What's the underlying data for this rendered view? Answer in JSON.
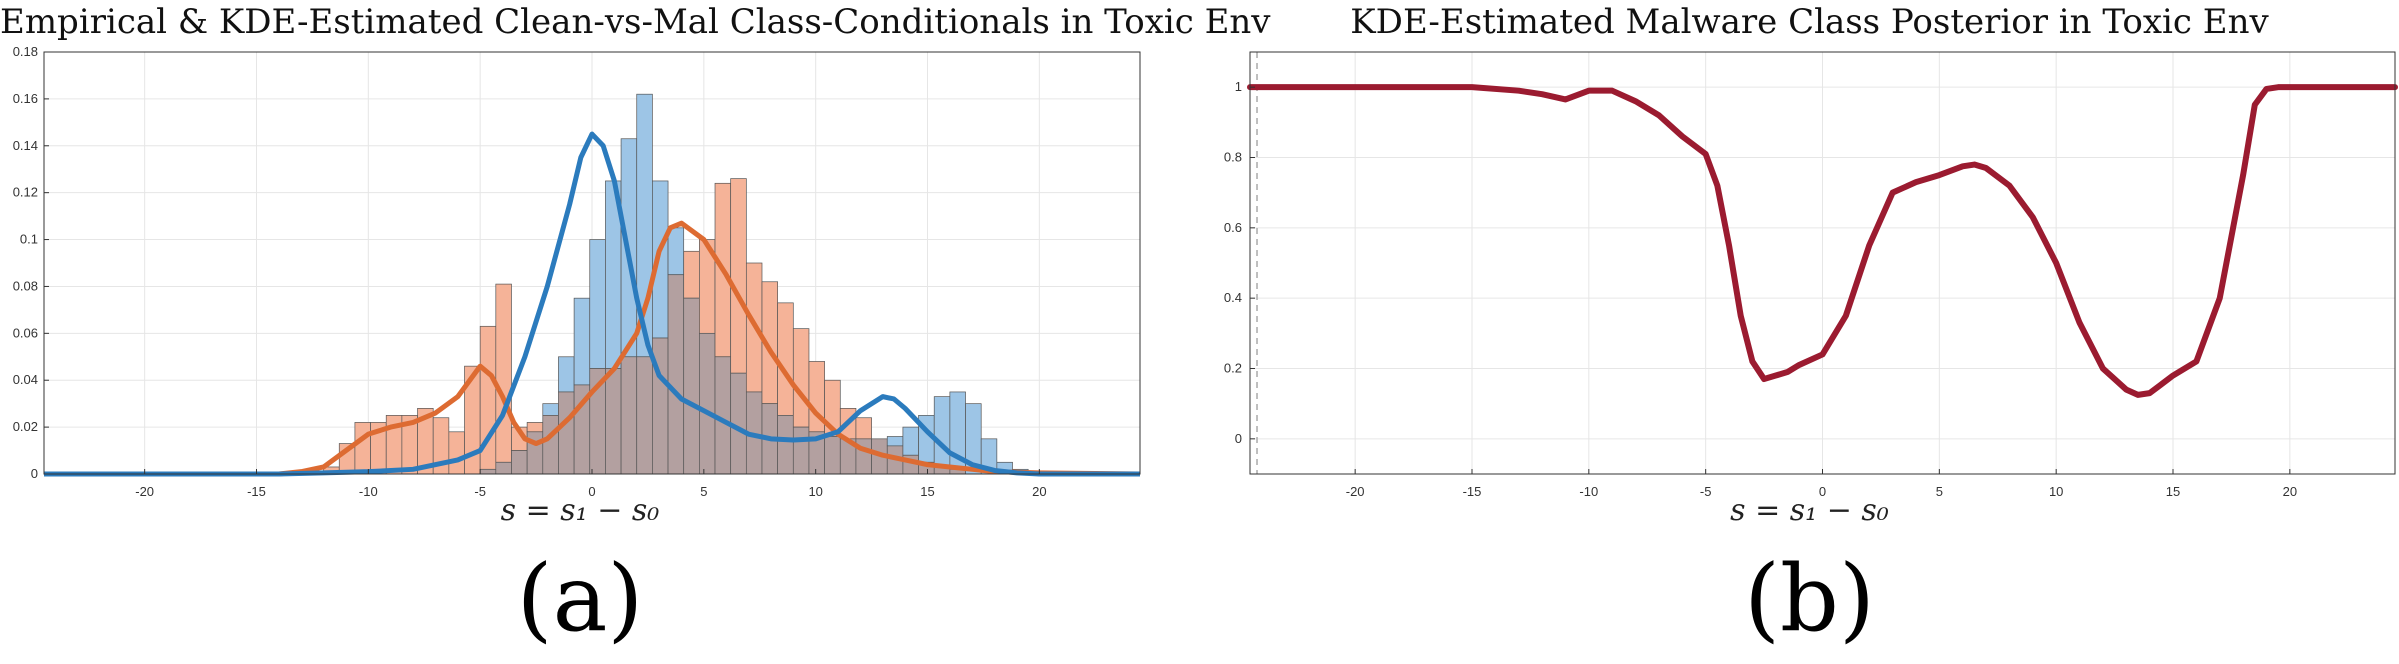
{
  "panels": [
    {
      "caption": "(a)",
      "chart_data": {
        "type": "histogram_with_kde",
        "title": "Empirical & KDE-Estimated Clean-vs-Mal Class-Conditionals in Toxic Env",
        "xlabel": "s = s_1 - s_0",
        "xlabel_display": "s = s₁ − s₀",
        "ylabel": "",
        "xlim": [
          -24.5,
          24.5
        ],
        "ylim": [
          0,
          0.18
        ],
        "xticks": [
          -20,
          -15,
          -10,
          -5,
          0,
          5,
          10,
          15,
          20
        ],
        "yticks": [
          0,
          0.02,
          0.04,
          0.06,
          0.08,
          0.1,
          0.12,
          0.14,
          0.16,
          0.18
        ],
        "ytick_labels": [
          "0",
          "0.02",
          "0.04",
          "0.06",
          "0.08",
          "0.1",
          "0.12",
          "0.14",
          "0.16",
          "0.18"
        ],
        "grid": true,
        "legend": "none",
        "colors": {
          "clean": "#2b7bbd",
          "clean_fill": "#9dc5e6",
          "mal": "#dd6b32",
          "mal_fill": "#f5b398",
          "overlap": "#b3a0a0"
        },
        "bin_start": -12,
        "bin_width": 0.7,
        "clean_hist": [
          0,
          0,
          0,
          0,
          0,
          0,
          0,
          0,
          0,
          0,
          0.002,
          0.005,
          0.01,
          0.018,
          0.03,
          0.05,
          0.075,
          0.1,
          0.125,
          0.143,
          0.162,
          0.125,
          0.105,
          0.075,
          0.06,
          0.05,
          0.043,
          0.035,
          0.03,
          0.025,
          0.02,
          0.018,
          0.016,
          0.015,
          0.015,
          0.015,
          0.016,
          0.02,
          0.025,
          0.033,
          0.035,
          0.03,
          0.015,
          0.005,
          0.002,
          0
        ],
        "mal_hist": [
          0.003,
          0.013,
          0.022,
          0.022,
          0.025,
          0.025,
          0.028,
          0.024,
          0.018,
          0.046,
          0.063,
          0.081,
          0.02,
          0.022,
          0.025,
          0.035,
          0.038,
          0.045,
          0.045,
          0.05,
          0.05,
          0.058,
          0.085,
          0.095,
          0.1,
          0.124,
          0.126,
          0.09,
          0.082,
          0.073,
          0.062,
          0.048,
          0.04,
          0.028,
          0.024,
          0.015,
          0.012,
          0.008,
          0.005,
          0.003,
          0.002,
          0,
          0,
          0,
          0,
          0
        ],
        "kde_clean": [
          [
            -24.5,
            0
          ],
          [
            -14,
            0
          ],
          [
            -12,
            0.0005
          ],
          [
            -10,
            0.001
          ],
          [
            -8,
            0.002
          ],
          [
            -6,
            0.006
          ],
          [
            -5,
            0.01
          ],
          [
            -4,
            0.025
          ],
          [
            -3,
            0.05
          ],
          [
            -2,
            0.08
          ],
          [
            -1,
            0.115
          ],
          [
            -0.5,
            0.135
          ],
          [
            0,
            0.145
          ],
          [
            0.5,
            0.14
          ],
          [
            1,
            0.125
          ],
          [
            1.5,
            0.1
          ],
          [
            2,
            0.075
          ],
          [
            2.5,
            0.055
          ],
          [
            3,
            0.042
          ],
          [
            4,
            0.032
          ],
          [
            5,
            0.027
          ],
          [
            6,
            0.022
          ],
          [
            7,
            0.017
          ],
          [
            8,
            0.015
          ],
          [
            9,
            0.0145
          ],
          [
            10,
            0.015
          ],
          [
            11,
            0.018
          ],
          [
            12,
            0.027
          ],
          [
            13,
            0.033
          ],
          [
            13.5,
            0.032
          ],
          [
            14,
            0.028
          ],
          [
            15,
            0.018
          ],
          [
            16,
            0.009
          ],
          [
            17,
            0.004
          ],
          [
            18,
            0.0015
          ],
          [
            19,
            0.0005
          ],
          [
            20,
            0
          ],
          [
            24.5,
            0
          ]
        ],
        "kde_mal": [
          [
            -24.5,
            0
          ],
          [
            -14,
            0
          ],
          [
            -13,
            0.001
          ],
          [
            -12,
            0.003
          ],
          [
            -11,
            0.01
          ],
          [
            -10,
            0.017
          ],
          [
            -9,
            0.02
          ],
          [
            -8,
            0.022
          ],
          [
            -7,
            0.026
          ],
          [
            -6,
            0.033
          ],
          [
            -5,
            0.046
          ],
          [
            -4.5,
            0.042
          ],
          [
            -4,
            0.033
          ],
          [
            -3.5,
            0.022
          ],
          [
            -3,
            0.015
          ],
          [
            -2.5,
            0.013
          ],
          [
            -2,
            0.015
          ],
          [
            -1,
            0.024
          ],
          [
            0,
            0.035
          ],
          [
            1,
            0.045
          ],
          [
            2,
            0.06
          ],
          [
            2.5,
            0.075
          ],
          [
            3,
            0.095
          ],
          [
            3.5,
            0.105
          ],
          [
            4,
            0.107
          ],
          [
            5,
            0.1
          ],
          [
            6,
            0.085
          ],
          [
            7,
            0.068
          ],
          [
            8,
            0.052
          ],
          [
            9,
            0.038
          ],
          [
            10,
            0.026
          ],
          [
            11,
            0.017
          ],
          [
            12,
            0.011
          ],
          [
            13,
            0.008
          ],
          [
            14,
            0.006
          ],
          [
            15,
            0.004
          ],
          [
            16,
            0.003
          ],
          [
            17,
            0.002
          ],
          [
            18,
            0.001
          ],
          [
            20,
            0.0005
          ],
          [
            24.5,
            0
          ]
        ]
      }
    },
    {
      "caption": "(b)",
      "chart_data": {
        "type": "line",
        "title": "KDE-Estimated Malware Class Posterior in Toxic Env",
        "xlabel": "s = s_1 - s_0",
        "xlabel_display": "s = s₁ − s₀",
        "ylabel": "",
        "xlim": [
          -24.5,
          24.5
        ],
        "ylim": [
          -0.1,
          1.1
        ],
        "xticks": [
          -20,
          -15,
          -10,
          -5,
          0,
          5,
          10,
          15,
          20
        ],
        "yticks": [
          0,
          0.2,
          0.4,
          0.6,
          0.8,
          1
        ],
        "ytick_labels": [
          "0",
          "0.2",
          "0.4",
          "0.6",
          "0.8",
          "1"
        ],
        "grid": true,
        "legend": "none",
        "colors": {
          "line": "#9b1b30",
          "dashed": "#aaaaaa"
        },
        "series": [
          {
            "x": [
              -24.5,
              -20,
              -15,
              -13,
              -12,
              -11,
              -10,
              -9,
              -8,
              -7,
              -6,
              -5,
              -4.5,
              -4,
              -3.5,
              -3,
              -2.5,
              -2,
              -1.5,
              -1,
              0,
              1,
              2,
              3,
              4,
              5,
              6,
              6.5,
              7,
              8,
              9,
              10,
              11,
              12,
              13,
              13.5,
              14,
              15,
              16,
              17,
              18,
              18.5,
              19,
              19.5,
              20,
              24.5
            ],
            "y": [
              1,
              1,
              1,
              0.99,
              0.98,
              0.965,
              0.99,
              0.99,
              0.96,
              0.92,
              0.86,
              0.81,
              0.72,
              0.55,
              0.35,
              0.22,
              0.17,
              0.18,
              0.19,
              0.21,
              0.24,
              0.35,
              0.55,
              0.7,
              0.73,
              0.75,
              0.775,
              0.78,
              0.77,
              0.72,
              0.63,
              0.5,
              0.33,
              0.2,
              0.14,
              0.125,
              0.13,
              0.18,
              0.22,
              0.4,
              0.75,
              0.95,
              0.995,
              1,
              1,
              1
            ]
          }
        ]
      }
    }
  ]
}
